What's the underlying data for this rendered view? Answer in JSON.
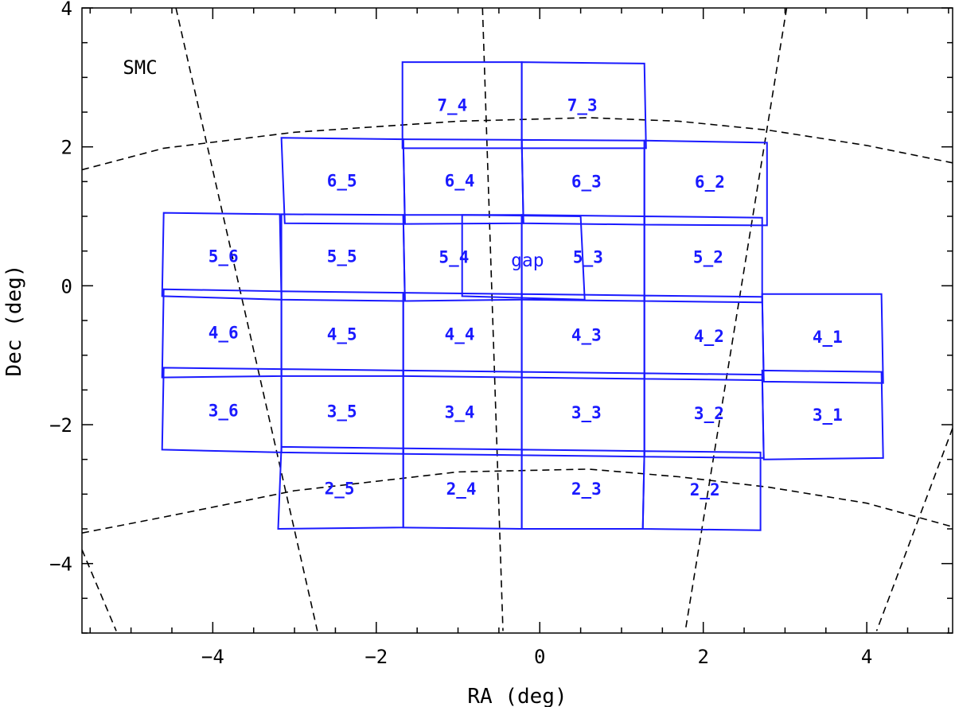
{
  "chart_data": {
    "type": "scatter",
    "title": "",
    "xlabel": "RA (deg)",
    "ylabel": "Dec (deg)",
    "xlim": [
      -5.6,
      5.05
    ],
    "ylim": [
      -5.0,
      4.0
    ],
    "x_ticks": [
      -4,
      -2,
      0,
      2,
      4
    ],
    "x_tick_labels": [
      "−4",
      "−2",
      "0",
      "2",
      "4"
    ],
    "y_ticks": [
      -4,
      -2,
      0,
      2,
      4
    ],
    "y_tick_labels": [
      "−4",
      "−2",
      "0",
      "2",
      "4"
    ],
    "grid": "dashed coordinate grid",
    "annotations": [
      {
        "text": "SMC",
        "x": -5.1,
        "y": 3.15
      },
      {
        "text": "gap",
        "x": -0.15,
        "y": 0.37
      }
    ],
    "grid_lines": [
      {
        "points": [
          [
            -5.6,
            1.67
          ],
          [
            -4.6,
            1.98
          ],
          [
            -3.0,
            2.21
          ],
          [
            -1.0,
            2.37
          ],
          [
            0.6,
            2.42
          ],
          [
            1.7,
            2.37
          ],
          [
            2.8,
            2.24
          ],
          [
            4.0,
            2.02
          ],
          [
            5.05,
            1.77
          ]
        ]
      },
      {
        "points": [
          [
            -5.6,
            -3.56
          ],
          [
            -4.6,
            -3.33
          ],
          [
            -3.0,
            -2.95
          ],
          [
            -1.0,
            -2.68
          ],
          [
            0.6,
            -2.64
          ],
          [
            1.7,
            -2.75
          ],
          [
            2.8,
            -2.9
          ],
          [
            4.0,
            -3.13
          ],
          [
            5.05,
            -3.47
          ]
        ]
      },
      {
        "points": [
          [
            -4.45,
            4.0
          ],
          [
            -2.72,
            -4.97
          ]
        ]
      },
      {
        "points": [
          [
            -0.7,
            4.0
          ],
          [
            -0.45,
            -4.97
          ]
        ]
      },
      {
        "points": [
          [
            3.02,
            4.0
          ],
          [
            1.78,
            -4.97
          ]
        ]
      },
      {
        "points": [
          [
            -5.6,
            -3.8
          ],
          [
            -5.18,
            -4.97
          ]
        ]
      },
      {
        "points": [
          [
            5.05,
            -2.05
          ],
          [
            4.12,
            -4.97
          ]
        ]
      }
    ],
    "fields": [
      {
        "label": "7_4",
        "center": [
          -1.07,
          2.6
        ],
        "corners": [
          [
            -1.68,
            3.22
          ],
          [
            -0.22,
            3.22
          ],
          [
            -0.22,
            1.98
          ],
          [
            -1.68,
            1.98
          ]
        ]
      },
      {
        "label": "7_3",
        "center": [
          0.52,
          2.6
        ],
        "corners": [
          [
            -0.22,
            3.22
          ],
          [
            1.28,
            3.2
          ],
          [
            1.3,
            1.98
          ],
          [
            -0.22,
            1.98
          ]
        ]
      },
      {
        "label": "6_5",
        "center": [
          -2.42,
          1.51
        ],
        "corners": [
          [
            -3.16,
            2.13
          ],
          [
            -1.67,
            2.11
          ],
          [
            -1.65,
            0.89
          ],
          [
            -3.12,
            0.9
          ]
        ]
      },
      {
        "label": "6_4",
        "center": [
          -0.98,
          1.51
        ],
        "corners": [
          [
            -1.67,
            2.11
          ],
          [
            -0.22,
            2.1
          ],
          [
            -0.2,
            0.9
          ],
          [
            -1.65,
            0.89
          ]
        ]
      },
      {
        "label": "6_3",
        "center": [
          0.57,
          1.5
        ],
        "corners": [
          [
            -0.22,
            2.1
          ],
          [
            1.28,
            2.09
          ],
          [
            1.28,
            0.88
          ],
          [
            -0.2,
            0.9
          ]
        ]
      },
      {
        "label": "6_2",
        "center": [
          2.08,
          1.49
        ],
        "corners": [
          [
            1.28,
            2.09
          ],
          [
            2.78,
            2.06
          ],
          [
            2.78,
            0.87
          ],
          [
            1.28,
            0.88
          ]
        ]
      },
      {
        "label": "5_6",
        "center": [
          -3.87,
          0.42
        ],
        "corners": [
          [
            -4.6,
            1.05
          ],
          [
            -3.18,
            1.03
          ],
          [
            -3.16,
            -0.2
          ],
          [
            -4.62,
            -0.15
          ]
        ]
      },
      {
        "label": "5_5",
        "center": [
          -2.42,
          0.42
        ],
        "corners": [
          [
            -3.16,
            1.03
          ],
          [
            -1.67,
            1.02
          ],
          [
            -1.65,
            -0.22
          ],
          [
            -3.16,
            -0.2
          ]
        ]
      },
      {
        "label": "5_4",
        "center": [
          -1.05,
          0.41
        ],
        "corners": [
          [
            -1.67,
            1.02
          ],
          [
            -0.22,
            1.02
          ],
          [
            -0.22,
            -0.2
          ],
          [
            -1.65,
            -0.22
          ]
        ]
      },
      {
        "label": "5_3",
        "center": [
          0.59,
          0.41
        ],
        "corners": [
          [
            -0.22,
            1.02
          ],
          [
            1.28,
            1.0
          ],
          [
            1.28,
            -0.22
          ],
          [
            -0.22,
            -0.2
          ]
        ]
      },
      {
        "label": "5_2",
        "center": [
          2.06,
          0.41
        ],
        "corners": [
          [
            1.28,
            1.0
          ],
          [
            2.72,
            0.98
          ],
          [
            2.72,
            -0.24
          ],
          [
            1.28,
            -0.22
          ]
        ]
      },
      {
        "label": "4_6",
        "center": [
          -3.87,
          -0.68
        ],
        "corners": [
          [
            -4.6,
            -0.05
          ],
          [
            -3.16,
            -0.08
          ],
          [
            -3.16,
            -1.3
          ],
          [
            -4.62,
            -1.32
          ]
        ]
      },
      {
        "label": "4_5",
        "center": [
          -2.42,
          -0.7
        ],
        "corners": [
          [
            -3.16,
            -0.08
          ],
          [
            -1.67,
            -0.1
          ],
          [
            -1.67,
            -1.3
          ],
          [
            -3.16,
            -1.3
          ]
        ]
      },
      {
        "label": "4_4",
        "center": [
          -0.98,
          -0.7
        ],
        "corners": [
          [
            -1.67,
            -0.1
          ],
          [
            -0.22,
            -0.12
          ],
          [
            -0.22,
            -1.32
          ],
          [
            -1.67,
            -1.3
          ]
        ]
      },
      {
        "label": "4_3",
        "center": [
          0.57,
          -0.71
        ],
        "corners": [
          [
            -0.22,
            -0.12
          ],
          [
            1.28,
            -0.14
          ],
          [
            1.28,
            -1.34
          ],
          [
            -0.22,
            -1.32
          ]
        ]
      },
      {
        "label": "4_2",
        "center": [
          2.07,
          -0.73
        ],
        "corners": [
          [
            1.28,
            -0.14
          ],
          [
            2.72,
            -0.16
          ],
          [
            2.74,
            -1.36
          ],
          [
            1.28,
            -1.34
          ]
        ]
      },
      {
        "label": "4_1",
        "center": [
          3.52,
          -0.74
        ],
        "corners": [
          [
            2.72,
            -0.12
          ],
          [
            4.18,
            -0.12
          ],
          [
            4.2,
            -1.4
          ],
          [
            2.74,
            -1.38
          ]
        ]
      },
      {
        "label": "3_6",
        "center": [
          -3.87,
          -1.8
        ],
        "corners": [
          [
            -4.6,
            -1.18
          ],
          [
            -3.16,
            -1.2
          ],
          [
            -3.16,
            -2.4
          ],
          [
            -4.62,
            -2.36
          ]
        ]
      },
      {
        "label": "3_5",
        "center": [
          -2.42,
          -1.81
        ],
        "corners": [
          [
            -3.16,
            -1.2
          ],
          [
            -1.67,
            -1.22
          ],
          [
            -1.67,
            -2.42
          ],
          [
            -3.16,
            -2.4
          ]
        ]
      },
      {
        "label": "3_4",
        "center": [
          -0.98,
          -1.82
        ],
        "corners": [
          [
            -1.67,
            -1.22
          ],
          [
            -0.22,
            -1.24
          ],
          [
            -0.22,
            -2.44
          ],
          [
            -1.67,
            -2.42
          ]
        ]
      },
      {
        "label": "3_3",
        "center": [
          0.57,
          -1.83
        ],
        "corners": [
          [
            -0.22,
            -1.24
          ],
          [
            1.28,
            -1.26
          ],
          [
            1.28,
            -2.46
          ],
          [
            -0.22,
            -2.44
          ]
        ]
      },
      {
        "label": "3_2",
        "center": [
          2.07,
          -1.84
        ],
        "corners": [
          [
            1.28,
            -1.26
          ],
          [
            2.72,
            -1.28
          ],
          [
            2.74,
            -2.48
          ],
          [
            1.28,
            -2.46
          ]
        ]
      },
      {
        "label": "3_1",
        "center": [
          3.52,
          -1.86
        ],
        "corners": [
          [
            2.72,
            -1.22
          ],
          [
            4.18,
            -1.24
          ],
          [
            4.2,
            -2.48
          ],
          [
            2.74,
            -2.5
          ]
        ]
      },
      {
        "label": "2_5",
        "center": [
          -2.45,
          -2.92
        ],
        "corners": [
          [
            -3.16,
            -2.32
          ],
          [
            -1.67,
            -2.34
          ],
          [
            -1.67,
            -3.48
          ],
          [
            -3.2,
            -3.5
          ]
        ]
      },
      {
        "label": "2_4",
        "center": [
          -0.96,
          -2.93
        ],
        "corners": [
          [
            -1.67,
            -2.34
          ],
          [
            -0.22,
            -2.36
          ],
          [
            -0.22,
            -3.5
          ],
          [
            -1.67,
            -3.48
          ]
        ]
      },
      {
        "label": "2_3",
        "center": [
          0.57,
          -2.93
        ],
        "corners": [
          [
            -0.22,
            -2.36
          ],
          [
            1.28,
            -2.38
          ],
          [
            1.26,
            -3.5
          ],
          [
            -0.22,
            -3.5
          ]
        ]
      },
      {
        "label": "2_2",
        "center": [
          2.02,
          -2.94
        ],
        "corners": [
          [
            1.28,
            -2.38
          ],
          [
            2.7,
            -2.4
          ],
          [
            2.7,
            -3.52
          ],
          [
            1.26,
            -3.5
          ]
        ]
      },
      {
        "label": "gap-outline",
        "center": null,
        "corners": [
          [
            -0.95,
            1.02
          ],
          [
            0.5,
            1.0
          ],
          [
            0.55,
            -0.2
          ],
          [
            -0.95,
            -0.15
          ]
        ]
      }
    ]
  }
}
